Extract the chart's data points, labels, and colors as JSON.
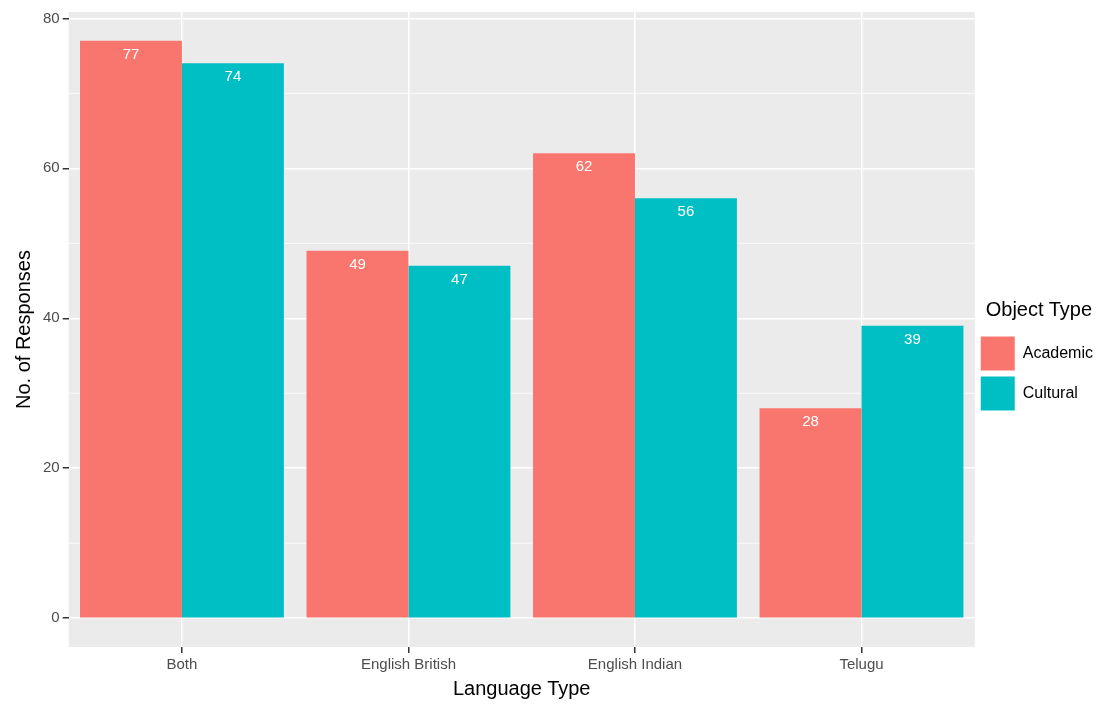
{
  "chart_data": {
    "type": "bar",
    "xlabel": "Language Type",
    "ylabel": "No. of Responses",
    "legend_title": "Object Type",
    "categories": [
      "Both",
      "English British",
      "English Indian",
      "Telugu"
    ],
    "series": [
      {
        "name": "Academic",
        "color": "#f8766d",
        "values": [
          77,
          49,
          62,
          28
        ]
      },
      {
        "name": "Cultural",
        "color": "#00bfc4",
        "values": [
          74,
          47,
          56,
          39
        ]
      }
    ],
    "ylim": [
      -3.85,
      80.85
    ],
    "yticks": [
      0,
      20,
      40,
      60,
      80
    ],
    "grid": true,
    "legend": "right",
    "data_labels": true
  }
}
